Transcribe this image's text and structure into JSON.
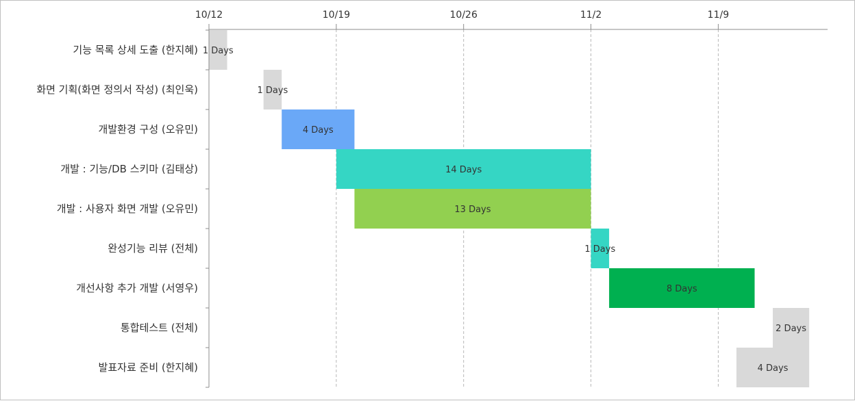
{
  "chart_data": {
    "type": "bar",
    "orientation": "horizontal",
    "subtype": "gantt",
    "x_axis": {
      "position": "top",
      "ticks": [
        "10/12",
        "10/19",
        "10/26",
        "11/2",
        "11/9"
      ]
    },
    "grid": {
      "vertical": true,
      "style": "dashed"
    },
    "tasks": [
      {
        "label": "기능 목록 상세 도출 (한지혜)",
        "start": "10/12",
        "duration": 1,
        "bar_label": "1 Days",
        "color": "#d9d9d9"
      },
      {
        "label": "화면 기획(화면 정의서 작성) (최인욱)",
        "start": "10/15",
        "duration": 1,
        "bar_label": "1 Days",
        "color": "#d9d9d9"
      },
      {
        "label": "개발환경 구성 (오유민)",
        "start": "10/16",
        "duration": 4,
        "bar_label": "4 Days",
        "color": "#6aa8f7"
      },
      {
        "label": "개발 : 기능/DB 스키마 (김태상)",
        "start": "10/19",
        "duration": 14,
        "bar_label": "14 Days",
        "color": "#35d6c4"
      },
      {
        "label": "개발 : 사용자 화면 개발 (오유민)",
        "start": "10/20",
        "duration": 13,
        "bar_label": "13 Days",
        "color": "#92d050"
      },
      {
        "label": "완성기능 리뷰 (전체)",
        "start": "11/2",
        "duration": 1,
        "bar_label": "1 Days",
        "color": "#35d6c4"
      },
      {
        "label": "개선사항 추가 개발 (서영우)",
        "start": "11/3",
        "duration": 8,
        "bar_label": "8 Days",
        "color": "#00b050"
      },
      {
        "label": "통합테스트 (전체)",
        "start": "11/12",
        "duration": 2,
        "bar_label": "2 Days",
        "color": "#d9d9d9"
      },
      {
        "label": "발표자료 준비 (한지혜)",
        "start": "11/10",
        "duration": 4,
        "bar_label": "4 Days",
        "color": "#d9d9d9"
      }
    ]
  }
}
